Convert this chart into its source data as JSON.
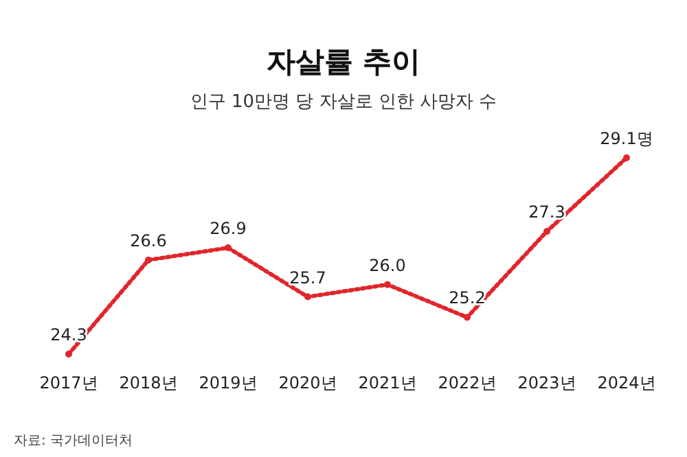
{
  "chart_data": {
    "type": "line",
    "title": "자살률 추이",
    "subtitle": "인구 10만명 당 자살로 인한 사망자 수",
    "categories": [
      "2017년",
      "2018년",
      "2019년",
      "2020년",
      "2021년",
      "2022년",
      "2023년",
      "2024년"
    ],
    "values": [
      24.3,
      26.6,
      26.9,
      25.7,
      26.0,
      25.2,
      27.3,
      29.1
    ],
    "value_labels": [
      "24.3",
      "26.6",
      "26.9",
      "25.7",
      "26.0",
      "25.2",
      "27.3",
      "29.1명"
    ],
    "color": "#e0262b",
    "marker": "circle",
    "line_style": "dotted",
    "annotations": [
      "자료: 국가데이터처"
    ]
  }
}
